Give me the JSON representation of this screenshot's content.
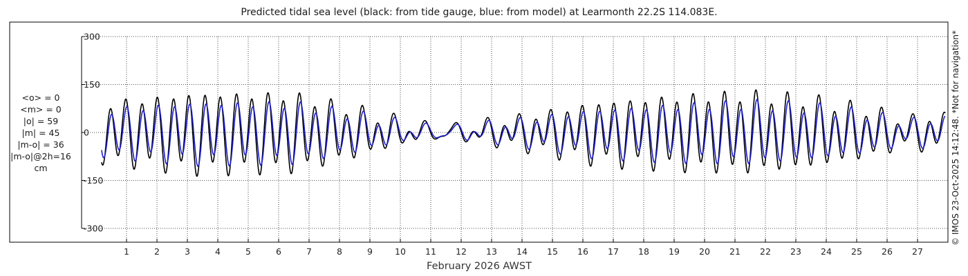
{
  "chart_data": {
    "type": "line",
    "title": "Predicted tidal sea level (black: from tide gauge, blue: from model) at Learmonth 22.2S 114.083E.",
    "xlabel": "February 2026 AWST",
    "ylabel": "",
    "units": "cm",
    "xlim": [
      0,
      28
    ],
    "ylim": [
      -300,
      300
    ],
    "yticks": [
      -300,
      -150,
      0,
      150,
      300
    ],
    "ytick_labels": [
      "-300",
      "-150",
      "0",
      "150",
      "300"
    ],
    "xticks": [
      1,
      2,
      3,
      4,
      5,
      6,
      7,
      8,
      9,
      10,
      11,
      12,
      13,
      14,
      15,
      16,
      17,
      18,
      19,
      20,
      21,
      22,
      23,
      24,
      25,
      26,
      27
    ],
    "xtick_labels": [
      "1",
      "2",
      "3",
      "4",
      "5",
      "6",
      "7",
      "8",
      "9",
      "10",
      "11",
      "12",
      "13",
      "14",
      "15",
      "16",
      "17",
      "18",
      "19",
      "20",
      "21",
      "22",
      "23",
      "24",
      "25",
      "26",
      "27"
    ],
    "grid": true,
    "series": [
      {
        "name": "from tide gauge",
        "color": "#000000",
        "model": "semidiurnal, spring-neap modulated",
        "semidiurnal_amplitude_envelope_cm": [
          [
            0.2,
            85
          ],
          [
            3.2,
            115
          ],
          [
            6.5,
            112
          ],
          [
            8.5,
            70
          ],
          [
            10.6,
            18
          ],
          [
            11.6,
            5
          ],
          [
            12.3,
            20
          ],
          [
            14.0,
            45
          ],
          [
            16.5,
            88
          ],
          [
            19.5,
            108
          ],
          [
            21.5,
            115
          ],
          [
            23.5,
            100
          ],
          [
            25.5,
            68
          ],
          [
            26.6,
            38
          ],
          [
            27.5,
            50
          ]
        ],
        "diurnal_amplitude_cm": 22,
        "mean_cm": 0
      },
      {
        "name": "from model",
        "color": "#1f1fc8",
        "model": "semidiurnal, spring-neap modulated, lagged",
        "semidiurnal_amplitude_envelope_cm": [
          [
            0.2,
            65
          ],
          [
            3.2,
            88
          ],
          [
            6.5,
            86
          ],
          [
            8.5,
            55
          ],
          [
            10.6,
            14
          ],
          [
            11.6,
            4
          ],
          [
            12.3,
            16
          ],
          [
            14.0,
            35
          ],
          [
            16.5,
            67
          ],
          [
            19.5,
            82
          ],
          [
            21.5,
            88
          ],
          [
            23.5,
            78
          ],
          [
            25.5,
            54
          ],
          [
            26.6,
            30
          ],
          [
            27.5,
            40
          ]
        ],
        "diurnal_amplitude_cm": 18,
        "mean_cm": 0,
        "lag_hours": 0.8
      }
    ]
  },
  "stats": {
    "mean_obs": "<o> = 0",
    "mean_model": "<m> = 0",
    "abs_obs": "|o| = 59",
    "abs_model": "|m| = 45",
    "abs_diff": "|m-o| = 36",
    "abs_diff_2h": "|m-o|@2h=16",
    "units": "cm"
  },
  "watermark": "© IMOS 23-Oct-2025 14:12:48. *Not for navigation*",
  "colors": {
    "obs": "#000000",
    "model": "#1f1fc8",
    "grid": "#4a4a4a",
    "frame": "#000000"
  }
}
